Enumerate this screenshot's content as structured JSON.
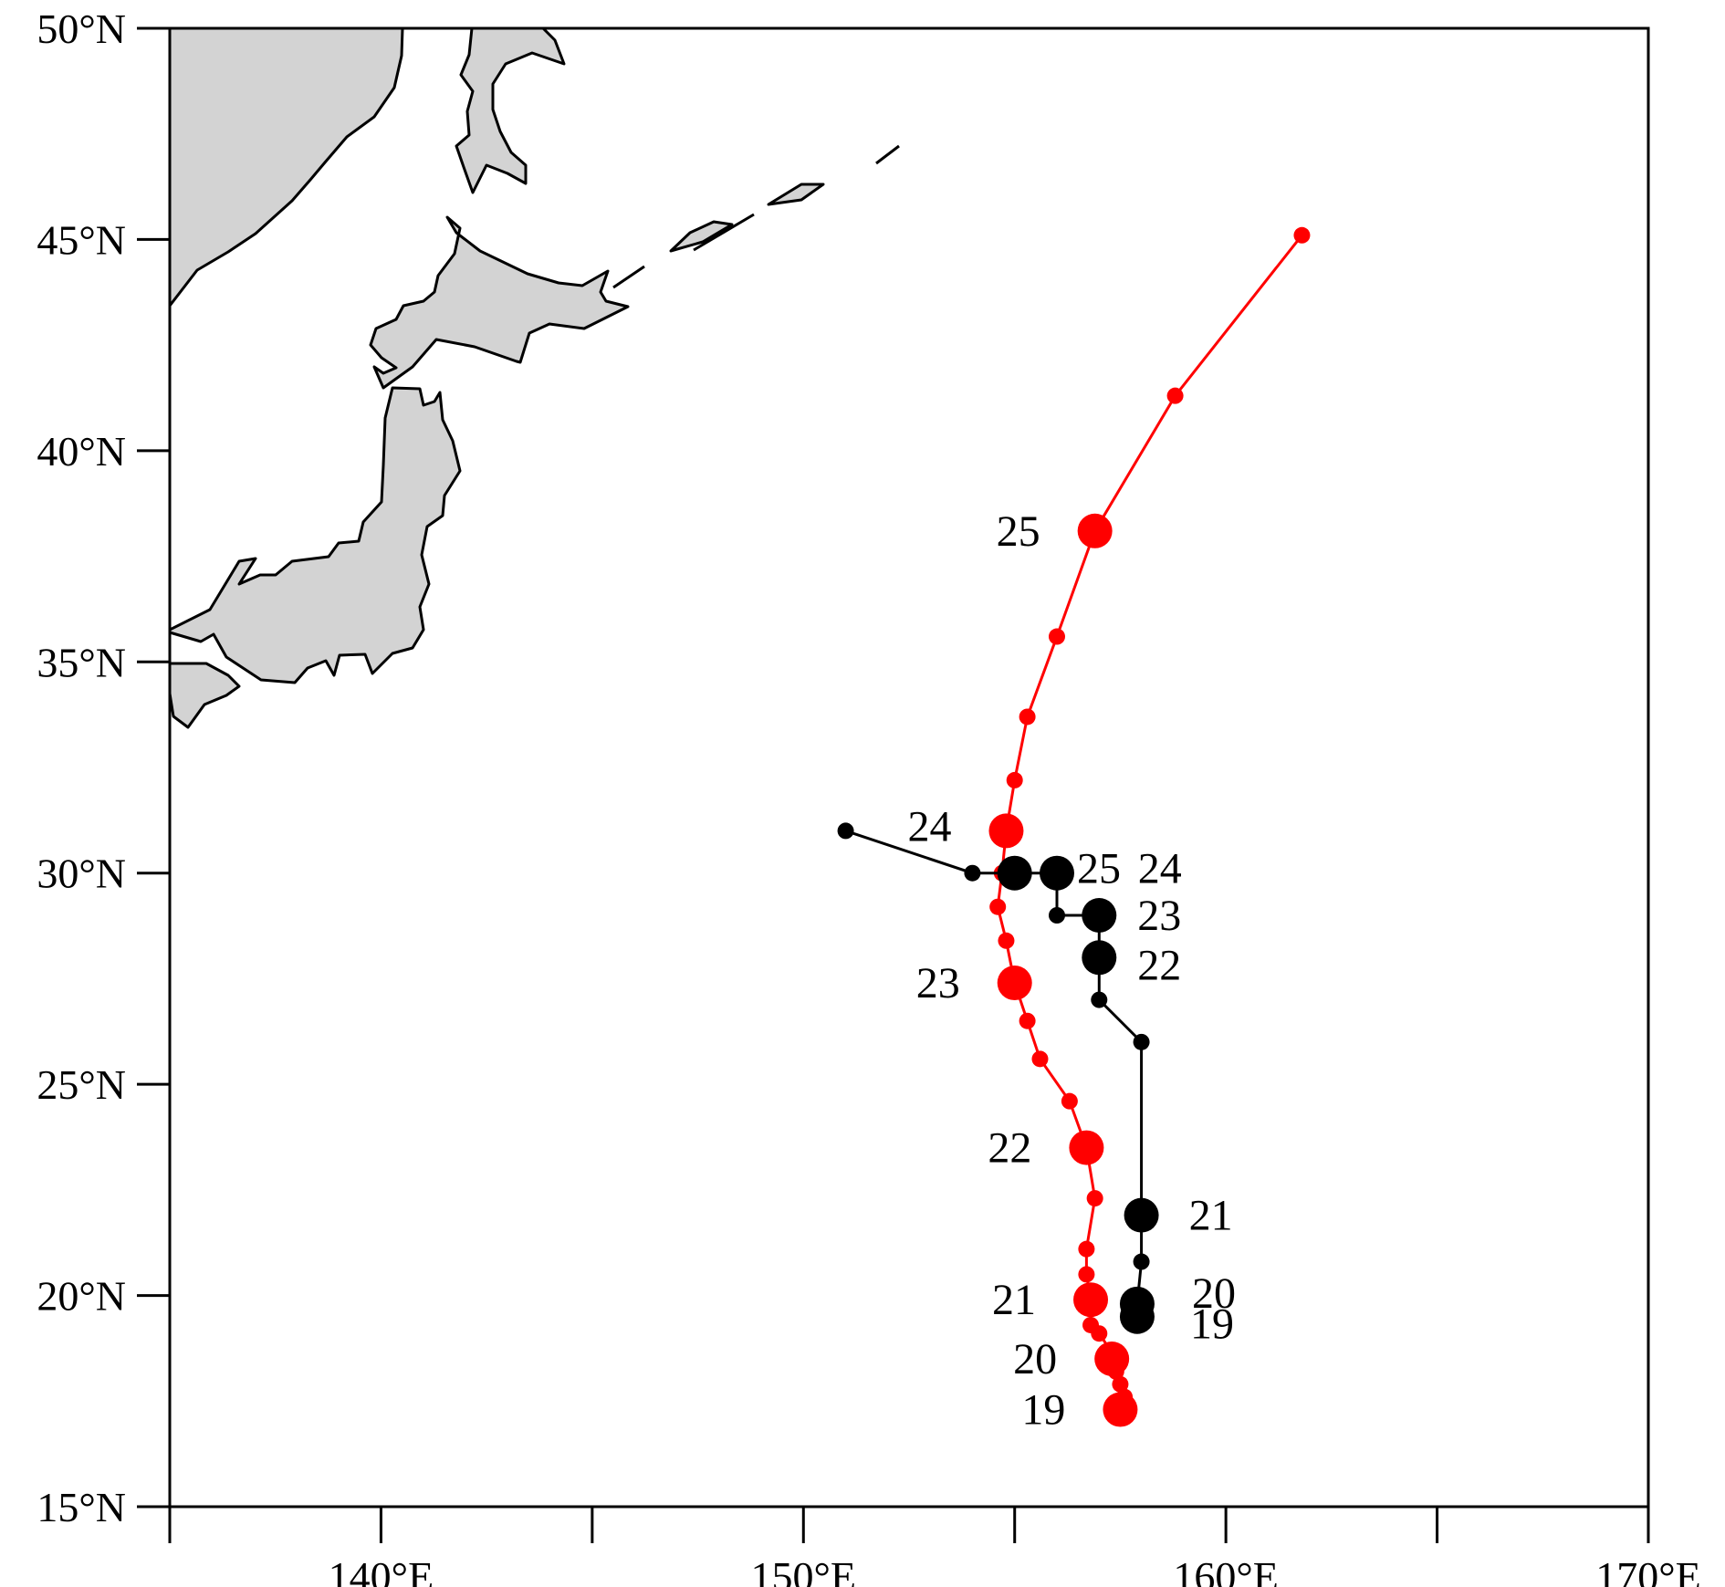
{
  "map": {
    "lon_range": [
      135,
      170
    ],
    "lat_range": [
      15,
      50
    ],
    "x_ticks": [
      {
        "value": 140,
        "label": "140°E"
      },
      {
        "value": 150,
        "label": "150°E"
      },
      {
        "value": 160,
        "label": "160°E"
      },
      {
        "value": 170,
        "label": "170°E"
      }
    ],
    "x_minor_ticks": [
      135,
      140,
      145,
      150,
      155,
      160,
      165,
      170
    ],
    "y_ticks": [
      {
        "value": 15,
        "label": "15°N"
      },
      {
        "value": 20,
        "label": "20°N"
      },
      {
        "value": 25,
        "label": "25°N"
      },
      {
        "value": 30,
        "label": "30°N"
      },
      {
        "value": 35,
        "label": "35°N"
      },
      {
        "value": 40,
        "label": "40°N"
      },
      {
        "value": 45,
        "label": "45°N"
      },
      {
        "value": 50,
        "label": "50°N"
      }
    ],
    "land_color": "#d3d3d3"
  },
  "chart_data": {
    "type": "scatter",
    "xlabel": "",
    "ylabel": "",
    "xlim": [
      135,
      170
    ],
    "ylim": [
      15,
      50
    ],
    "series": [
      {
        "color": "#ff0000",
        "points": [
          [
            157.5,
            17.3
          ],
          [
            157.6,
            17.6
          ],
          [
            157.5,
            17.9
          ],
          [
            157.4,
            18.2
          ],
          [
            157.3,
            18.5
          ],
          [
            157.4,
            18.5
          ],
          [
            157.0,
            19.1
          ],
          [
            156.8,
            19.3
          ],
          [
            156.8,
            19.9
          ],
          [
            156.7,
            20.5
          ],
          [
            156.7,
            21.1
          ],
          [
            156.9,
            22.3
          ],
          [
            156.7,
            23.5
          ],
          [
            156.3,
            24.6
          ],
          [
            155.6,
            25.6
          ],
          [
            155.3,
            26.5
          ],
          [
            155.0,
            27.4
          ],
          [
            154.8,
            28.4
          ],
          [
            154.6,
            29.2
          ],
          [
            154.7,
            30.0
          ],
          [
            154.8,
            31.0
          ],
          [
            155.0,
            32.2
          ],
          [
            155.3,
            33.7
          ],
          [
            156.0,
            35.6
          ],
          [
            156.9,
            38.1
          ],
          [
            158.8,
            41.3
          ],
          [
            161.8,
            45.1
          ]
        ],
        "marked_points": [
          {
            "lon": 157.5,
            "lat": 17.3,
            "label": "19"
          },
          {
            "lon": 157.3,
            "lat": 18.5,
            "label": "20"
          },
          {
            "lon": 156.8,
            "lat": 19.9,
            "label": "21"
          },
          {
            "lon": 156.7,
            "lat": 23.5,
            "label": "22"
          },
          {
            "lon": 155.0,
            "lat": 27.4,
            "label": "23"
          },
          {
            "lon": 154.8,
            "lat": 31.0,
            "label": "24"
          },
          {
            "lon": 156.9,
            "lat": 38.1,
            "label": "25"
          }
        ]
      },
      {
        "color": "#000000",
        "points": [
          [
            157.9,
            19.5
          ],
          [
            157.9,
            19.8
          ],
          [
            158.0,
            20.8
          ],
          [
            158.0,
            21.9
          ],
          [
            158.0,
            26.0
          ],
          [
            157.0,
            27.0
          ],
          [
            157.0,
            28.0
          ],
          [
            157.0,
            29.0
          ],
          [
            156.0,
            29.0
          ],
          [
            156.0,
            30.0
          ],
          [
            155.0,
            30.0
          ],
          [
            154.0,
            30.0
          ],
          [
            151.0,
            31.0
          ]
        ],
        "marked_points": [
          {
            "lon": 157.9,
            "lat": 19.5,
            "label": "19"
          },
          {
            "lon": 157.9,
            "lat": 19.8,
            "label": "20"
          },
          {
            "lon": 158.0,
            "lat": 21.9,
            "label": "21"
          },
          {
            "lon": 157.0,
            "lat": 28.0,
            "label": "22"
          },
          {
            "lon": 157.0,
            "lat": 29.0,
            "label": "23"
          },
          {
            "lon": 155.0,
            "lat": 30.0,
            "label": "24"
          },
          {
            "lon": 156.0,
            "lat": 30.0,
            "label": "25"
          }
        ]
      }
    ]
  }
}
